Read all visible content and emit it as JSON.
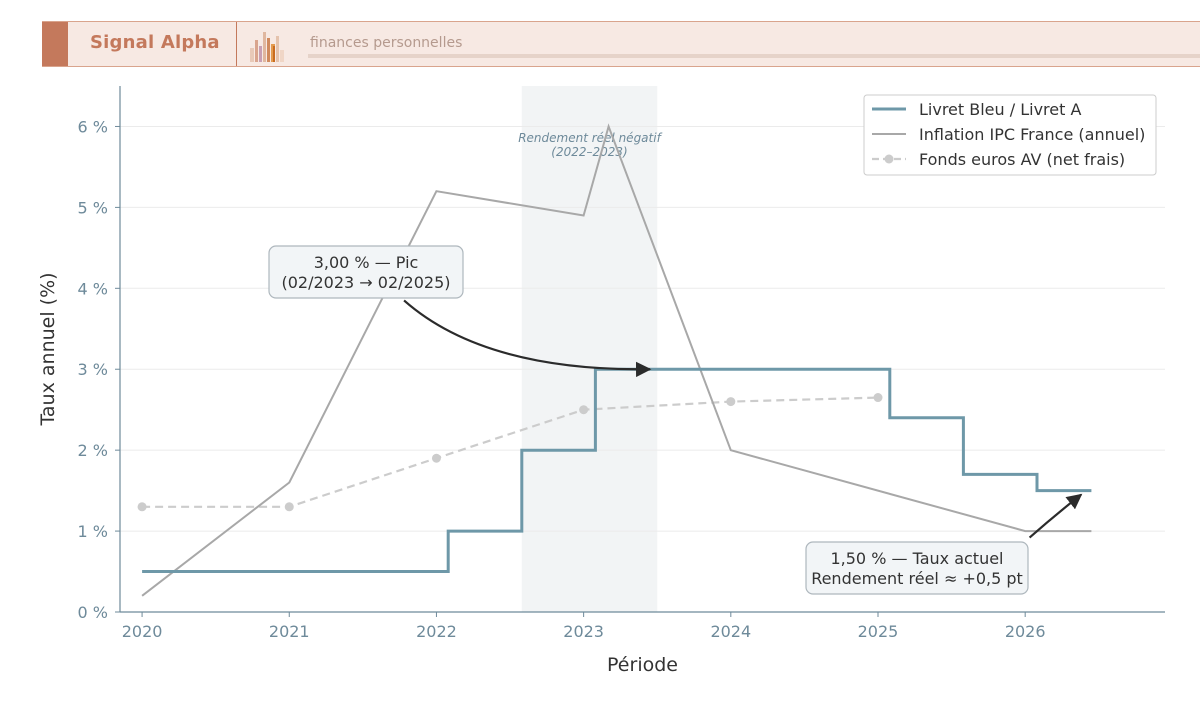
{
  "header": {
    "brand": "Signal Alpha",
    "tagline": "finances personnelles",
    "accent_color": "#c4795c",
    "background_color": "#f7e9e3"
  },
  "chart_data": {
    "type": "line",
    "xlabel": "Période",
    "ylabel": "Taux annuel (%)",
    "xlim": [
      2019.85,
      2026.95
    ],
    "ylim": [
      0,
      6.5
    ],
    "x_ticks": [
      2020,
      2021,
      2022,
      2023,
      2024,
      2025,
      2026
    ],
    "x_tick_labels": [
      "2020",
      "2021",
      "2022",
      "2023",
      "2024",
      "2025",
      "2026"
    ],
    "y_ticks": [
      0,
      1,
      2,
      3,
      4,
      5,
      6
    ],
    "y_tick_labels": [
      "0 %",
      "1 %",
      "2 %",
      "3 %",
      "4 %",
      "5 %",
      "6 %"
    ],
    "grid": "horizontal",
    "legend_position": "top-right",
    "series": [
      {
        "name": "Livret Bleu / Livret A",
        "style": "step",
        "color": "#6e98a8",
        "x": [
          2020.0,
          2022.08,
          2022.08,
          2022.58,
          2022.58,
          2023.08,
          2023.08,
          2025.08,
          2025.08,
          2025.58,
          2025.58,
          2026.08,
          2026.08,
          2026.45
        ],
        "y": [
          0.5,
          0.5,
          1.0,
          1.0,
          2.0,
          2.0,
          3.0,
          3.0,
          2.4,
          2.4,
          1.7,
          1.7,
          1.5,
          1.5
        ]
      },
      {
        "name": "Inflation IPC France (annuel)",
        "style": "solid",
        "color": "#a8a8a8",
        "x": [
          2020.0,
          2021.0,
          2022.0,
          2023.0,
          2023.17,
          2024.0,
          2026.0,
          2026.45
        ],
        "y": [
          0.2,
          1.6,
          5.2,
          4.9,
          6.0,
          2.0,
          1.0,
          1.0
        ]
      },
      {
        "name": "Fonds euros AV (net frais)",
        "style": "dashed-markers",
        "color": "#cccccc",
        "x": [
          2020.0,
          2021.0,
          2022.0,
          2023.0,
          2024.0,
          2025.0
        ],
        "y": [
          1.3,
          1.3,
          1.9,
          2.5,
          2.6,
          2.65
        ]
      }
    ],
    "shaded_region": {
      "x_start": 2022.58,
      "x_end": 2023.5,
      "label_line1": "Rendement réel négatif",
      "label_line2": "(2022–2023)"
    },
    "annotations": [
      {
        "line1": "3,00 % — Pic",
        "line2": "(02/2023 → 02/2025)",
        "box_x": 2021.5,
        "box_y": 4.2,
        "arrow_from_x": 2021.78,
        "arrow_from_y": 3.85,
        "arrow_to_x": 2023.45,
        "arrow_to_y": 3.0
      },
      {
        "line1": "1,50 % — Taux actuel",
        "line2": "Rendement réel ≈ +0,5 pt",
        "box_x": 2025.3,
        "box_y": 0.55,
        "arrow_from_x": 2026.03,
        "arrow_from_y": 0.92,
        "arrow_to_x": 2026.38,
        "arrow_to_y": 1.45
      }
    ]
  }
}
